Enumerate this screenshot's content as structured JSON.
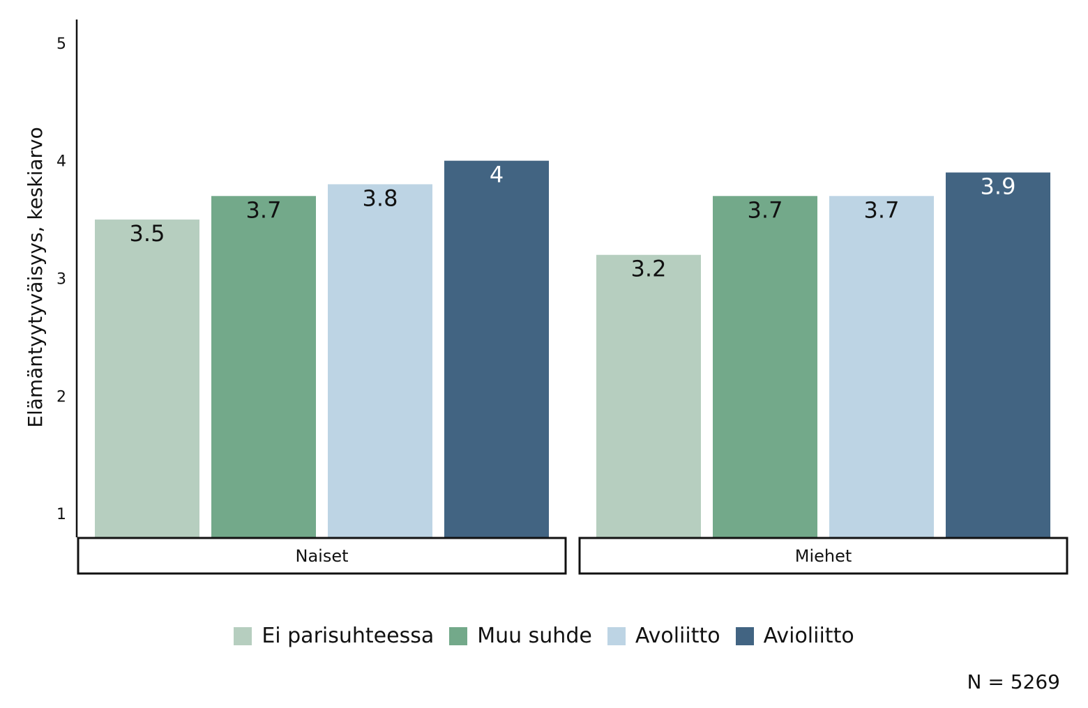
{
  "chart_data": {
    "type": "bar",
    "ylabel": "Elämäntyytyväisyys, keskiarvo",
    "ylim": [
      1,
      5
    ],
    "yticks": [
      "1",
      "2",
      "3",
      "4",
      "5"
    ],
    "panels": [
      "Naiset",
      "Miehet"
    ],
    "series": [
      {
        "name": "Ei parisuhteessa",
        "color": "#b6cebf",
        "values": [
          3.5,
          3.2
        ],
        "labels": [
          "3.5",
          "3.2"
        ],
        "label_color": "#111111"
      },
      {
        "name": "Muu suhde",
        "color": "#73a98a",
        "values": [
          3.7,
          3.7
        ],
        "labels": [
          "3.7",
          "3.7"
        ],
        "label_color": "#111111"
      },
      {
        "name": "Avoliitto",
        "color": "#bdd4e4",
        "values": [
          3.8,
          3.7
        ],
        "labels": [
          "3.8",
          "3.7"
        ],
        "label_color": "#111111"
      },
      {
        "name": "Avioliitto",
        "color": "#426482",
        "values": [
          4.0,
          3.9
        ],
        "labels": [
          "4",
          "3.9"
        ],
        "label_color": "#ffffff"
      }
    ],
    "legend_position": "bottom",
    "grid": false
  },
  "note": "N = 5269"
}
